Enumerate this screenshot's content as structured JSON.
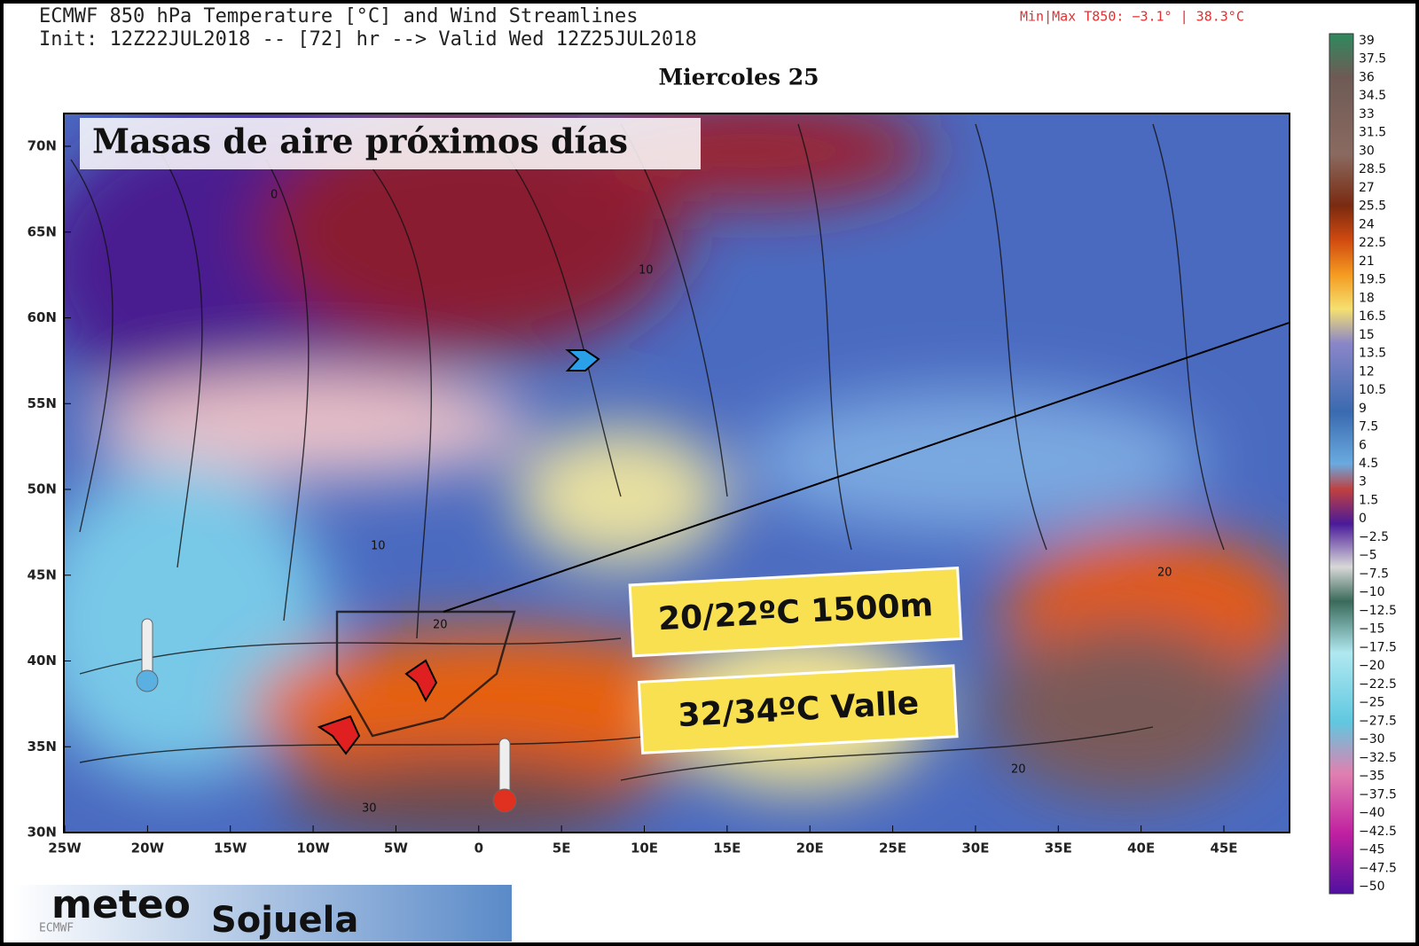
{
  "header": {
    "title_line1": "ECMWF 850 hPa Temperature [°C] and Wind Streamlines",
    "title_line2": "Init: 12Z22JUL2018 -- [72] hr --> Valid Wed 12Z25JUL2018",
    "minmax": "Min|Max T850:  −3.1° |  38.3°C",
    "day": "Miercoles 25"
  },
  "map": {
    "headline": "Masas de aire próximos días",
    "lat_labels": [
      "70N",
      "65N",
      "60N",
      "55N",
      "50N",
      "45N",
      "40N",
      "35N",
      "30N"
    ],
    "lon_labels": [
      "25W",
      "20W",
      "15W",
      "10W",
      "5W",
      "0",
      "5E",
      "10E",
      "15E",
      "20E",
      "25E",
      "30E",
      "35E",
      "40E",
      "45E"
    ],
    "contour_labels": [
      "0",
      "10",
      "10",
      "20",
      "20",
      "20",
      "30"
    ],
    "callouts": [
      "20/22ºC 1500m",
      "32/34ºC Valle"
    ]
  },
  "colorbar": {
    "labels": [
      "39",
      "37.5",
      "36",
      "34.5",
      "33",
      "31.5",
      "30",
      "28.5",
      "27",
      "25.5",
      "24",
      "22.5",
      "21",
      "19.5",
      "18",
      "16.5",
      "15",
      "13.5",
      "12",
      "10.5",
      "9",
      "7.5",
      "6",
      "4.5",
      "3",
      "1.5",
      "0",
      "−2.5",
      "−5",
      "−7.5",
      "−10",
      "−12.5",
      "−15",
      "−17.5",
      "−20",
      "−22.5",
      "−25",
      "−27.5",
      "−30",
      "−32.5",
      "−35",
      "−37.5",
      "−40",
      "−42.5",
      "−45",
      "−47.5",
      "−50"
    ]
  },
  "logo": {
    "part1": "meteo",
    "part2": "Sojuela",
    "source": "ECMWF"
  }
}
